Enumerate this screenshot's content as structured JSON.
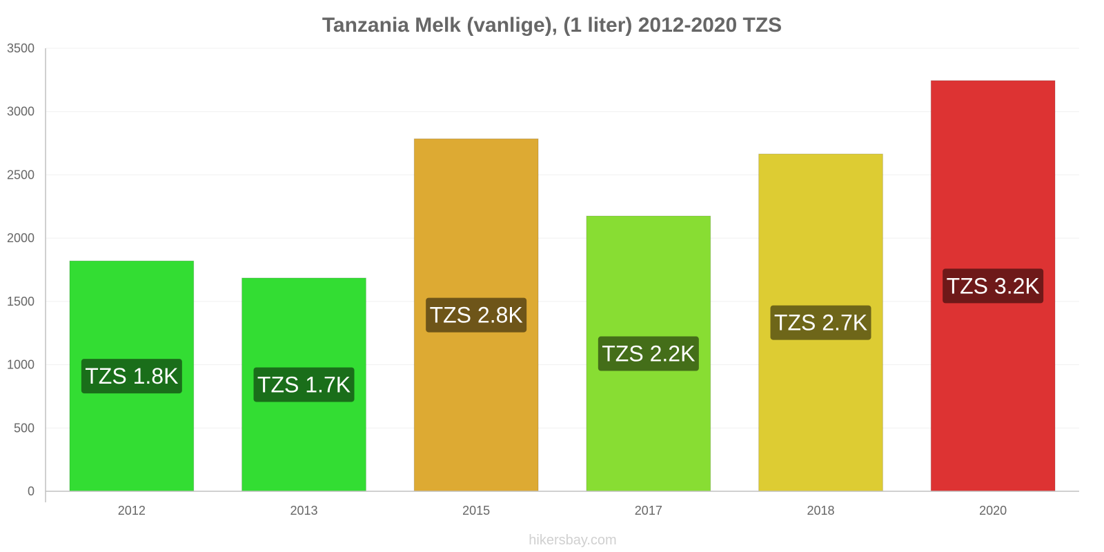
{
  "chart_data": {
    "type": "bar",
    "title": "Tanzania Melk (vanlige), (1 liter) 2012-2020 TZS",
    "xlabel": "",
    "ylabel": "",
    "categories": [
      "2012",
      "2013",
      "2015",
      "2017",
      "2018",
      "2020"
    ],
    "values": [
      1820,
      1685,
      2785,
      2175,
      2665,
      3245
    ],
    "data_labels": [
      "TZS 1.8K",
      "TZS 1.7K",
      "TZS 2.8K",
      "TZS 2.2K",
      "TZS 2.7K",
      "TZS 3.2K"
    ],
    "ylim": [
      0,
      3500
    ],
    "y_ticks": [
      "0",
      "500",
      "1000",
      "1500",
      "2000",
      "2500",
      "3000",
      "3500"
    ],
    "grid": true,
    "legend": "none",
    "bar_colors": [
      "#33dd33",
      "#33dd33",
      "#ddaa33",
      "#88dd33",
      "#ddcc33",
      "#dd3333"
    ],
    "label_colors": [
      "#1a6e1a",
      "#1a6e1a",
      "#6e5519",
      "#446e19",
      "#6e6619",
      "#6e1919"
    ]
  },
  "watermark": "hikersbay.com"
}
